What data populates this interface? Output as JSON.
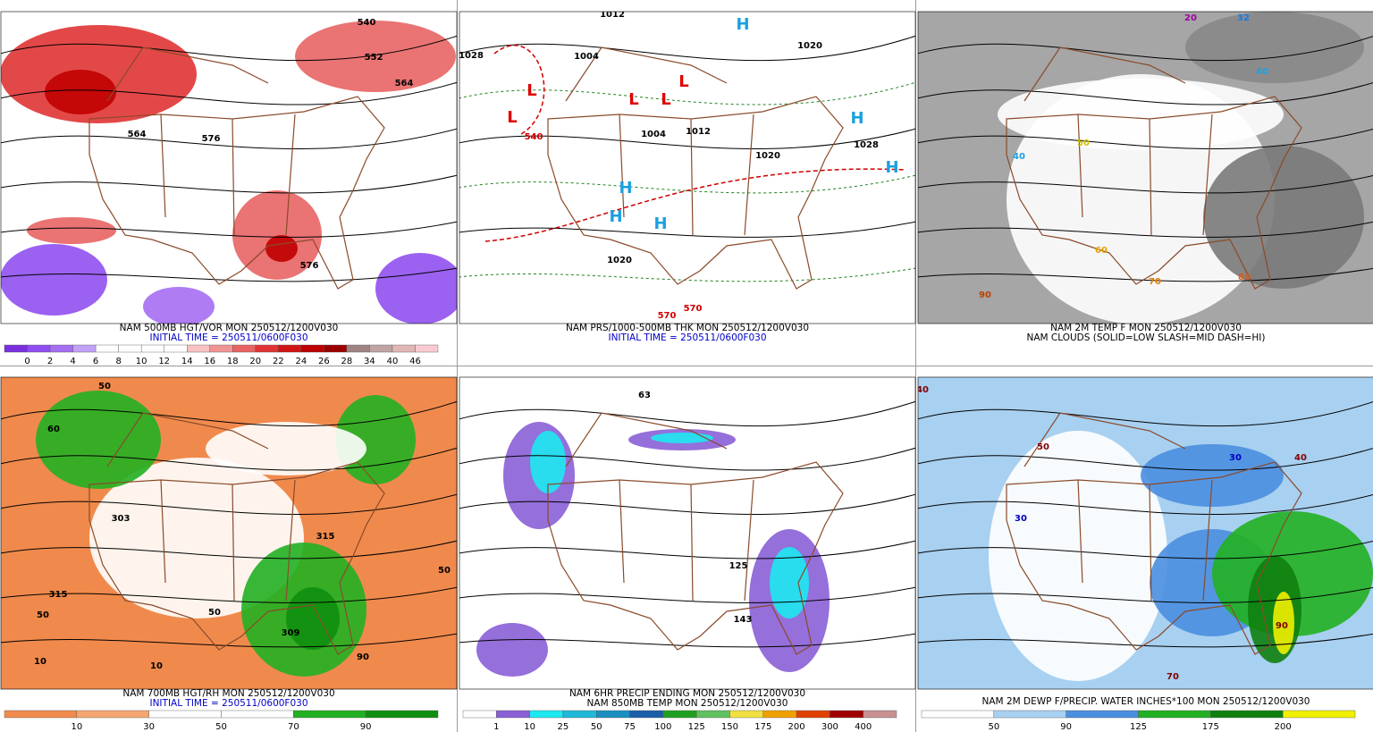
{
  "panels": [
    {
      "caption": [
        {
          "text": "NAM 500MB HGT/VOR MON 250512/1200V030",
          "color": "#000000"
        },
        {
          "text": "INITIAL TIME = 250511/0600F030",
          "color": "#0000c8"
        }
      ],
      "background": "#ffffff",
      "colorbar": {
        "labels": [
          "0",
          "2",
          "4",
          "6",
          "8",
          "10",
          "12",
          "14",
          "16",
          "18",
          "20",
          "22",
          "24",
          "26",
          "28",
          "34",
          "40",
          "46"
        ],
        "colors": [
          "#7a30e0",
          "#8f4ff0",
          "#a66ef2",
          "#c2a2f7",
          "#ffffff",
          "#ffffff",
          "#ffffff",
          "#ffffff",
          "#f7c2c2",
          "#f09494",
          "#e86464",
          "#e03434",
          "#d01414",
          "#bc0000",
          "#9c0000",
          "#a08484",
          "#c0a4a4",
          "#e2b6b6",
          "#f8cbd2"
        ]
      },
      "labels": [
        {
          "text": "540",
          "color": "#000000"
        },
        {
          "text": "552",
          "color": "#000000"
        },
        {
          "text": "564",
          "color": "#000000"
        },
        {
          "text": "564",
          "color": "#000000"
        },
        {
          "text": "576",
          "color": "#000000"
        },
        {
          "text": "576",
          "color": "#000000"
        }
      ]
    },
    {
      "caption": [
        {
          "text": "NAM PRS/1000-500MB THK MON 250512/1200V030",
          "color": "#000000"
        },
        {
          "text": "INITIAL TIME = 250511/0600F030",
          "color": "#0000c8"
        }
      ],
      "background": "#ffffff",
      "labels": [
        {
          "text": "1012",
          "color": "#000000"
        },
        {
          "text": "1028",
          "color": "#000000"
        },
        {
          "text": "1004",
          "color": "#000000"
        },
        {
          "text": "1004",
          "color": "#000000"
        },
        {
          "text": "1012",
          "color": "#000000"
        },
        {
          "text": "1020",
          "color": "#000000"
        },
        {
          "text": "1028",
          "color": "#000000"
        },
        {
          "text": "1020",
          "color": "#000000"
        },
        {
          "text": "1020",
          "color": "#000000"
        },
        {
          "text": "540",
          "color": "#d00000"
        },
        {
          "text": "570",
          "color": "#d00000"
        },
        {
          "text": "570",
          "color": "#d00000"
        },
        {
          "text": "L",
          "color": "#e00000"
        },
        {
          "text": "L",
          "color": "#e00000"
        },
        {
          "text": "L",
          "color": "#e00000"
        },
        {
          "text": "L",
          "color": "#e00000"
        },
        {
          "text": "L",
          "color": "#e00000"
        },
        {
          "text": "H",
          "color": "#1aa0e0"
        },
        {
          "text": "H",
          "color": "#1aa0e0"
        },
        {
          "text": "H",
          "color": "#1aa0e0"
        },
        {
          "text": "H",
          "color": "#1aa0e0"
        },
        {
          "text": "H",
          "color": "#1aa0e0"
        },
        {
          "text": "H",
          "color": "#1aa0e0"
        }
      ]
    },
    {
      "caption": [
        {
          "text": "NAM 2M TEMP F MON 250512/1200V030",
          "color": "#000000"
        },
        {
          "text": "NAM CLOUDS (SOLID=LOW SLASH=MID DASH=HI)",
          "color": "#000000"
        }
      ],
      "background": "#a6a6a6",
      "labels": [
        {
          "text": "20",
          "color": "#a000a0"
        },
        {
          "text": "32",
          "color": "#1a7ae0"
        },
        {
          "text": "40",
          "color": "#20a0e0"
        },
        {
          "text": "40",
          "color": "#20a0e0"
        },
        {
          "text": "50",
          "color": "#d0c000"
        },
        {
          "text": "60",
          "color": "#e8a000"
        },
        {
          "text": "70",
          "color": "#e08000"
        },
        {
          "text": "80",
          "color": "#d06020"
        },
        {
          "text": "90",
          "color": "#c04000"
        }
      ]
    },
    {
      "caption": [
        {
          "text": "NAM 700MB HGT/RH MON 250512/1200V030",
          "color": "#000000"
        },
        {
          "text": "INITIAL TIME = 250511/0600F030",
          "color": "#0000c8"
        }
      ],
      "background": "#f08a4c",
      "colorbar": {
        "labels": [
          "10",
          "30",
          "50",
          "70",
          "90"
        ],
        "colors": [
          "#f08a4c",
          "#f5a670",
          "#ffffff",
          "#ffffff",
          "#22b022",
          "#0f8f0f"
        ]
      },
      "labels": [
        {
          "text": "50",
          "color": "#000000"
        },
        {
          "text": "60",
          "color": "#000000"
        },
        {
          "text": "303",
          "color": "#000000"
        },
        {
          "text": "315",
          "color": "#000000"
        },
        {
          "text": "50",
          "color": "#000000"
        },
        {
          "text": "10",
          "color": "#000000"
        },
        {
          "text": "10",
          "color": "#000000"
        },
        {
          "text": "50",
          "color": "#000000"
        },
        {
          "text": "309",
          "color": "#000000"
        },
        {
          "text": "315",
          "color": "#000000"
        },
        {
          "text": "50",
          "color": "#000000"
        },
        {
          "text": "90",
          "color": "#000000"
        }
      ]
    },
    {
      "caption": [
        {
          "text": "NAM 6HR PRECIP ENDING MON 250512/1200V030",
          "color": "#000000"
        },
        {
          "text": "NAM 850MB TEMP MON 250512/1200V030",
          "color": "#000000"
        }
      ],
      "background": "#ffffff",
      "colorbar": {
        "labels": [
          "1",
          "10",
          "25",
          "50",
          "75",
          "100",
          "125",
          "150",
          "175",
          "200",
          "300",
          "400"
        ],
        "colors": [
          "#ffffff",
          "#8a5fd6",
          "#1de8f0",
          "#20b8d8",
          "#1a8fc0",
          "#1a5fa8",
          "#20a020",
          "#60c060",
          "#f0e040",
          "#f0a000",
          "#e04000",
          "#a00000",
          "#c89090"
        ]
      },
      "labels": [
        {
          "text": "63",
          "color": "#000000"
        },
        {
          "text": "125",
          "color": "#000000"
        },
        {
          "text": "143",
          "color": "#000000"
        }
      ]
    },
    {
      "caption": [
        {
          "text": "NAM 2M DEWP F/PRECIP. WATER INCHES*100 MON 250512/1200V030",
          "color": "#000000"
        }
      ],
      "background": "#a8d0f0",
      "colorbar": {
        "labels": [
          "50",
          "90",
          "125",
          "175",
          "200"
        ],
        "colors": [
          "#ffffff",
          "#a8d0f0",
          "#4a8ee0",
          "#22b022",
          "#0f800f",
          "#f0f000"
        ]
      },
      "labels": [
        {
          "text": "40",
          "color": "#800000"
        },
        {
          "text": "30",
          "color": "#0000c0"
        },
        {
          "text": "50",
          "color": "#800000"
        },
        {
          "text": "70",
          "color": "#800000"
        },
        {
          "text": "30",
          "color": "#0000c0"
        },
        {
          "text": "40",
          "color": "#800000"
        },
        {
          "text": "90",
          "color": "#800000"
        }
      ]
    }
  ]
}
